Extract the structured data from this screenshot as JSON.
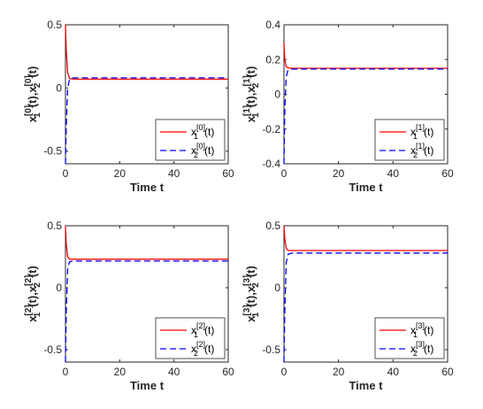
{
  "chart_data": [
    {
      "type": "line",
      "xlabel": "Time t",
      "ylabel": {
        "base": "x",
        "sup": "[0]",
        "parts": [
          "1",
          "(t),",
          "2",
          "(t)"
        ]
      },
      "xlim": [
        0,
        60
      ],
      "ylim": [
        -0.6,
        0.5
      ],
      "xticks": [
        "0",
        "20",
        "40",
        "60"
      ],
      "yticks": [
        {
          "value": 0.5,
          "label": "0.5"
        },
        {
          "value": 0,
          "label": "0"
        },
        {
          "value": -0.5,
          "label": "-0.5"
        }
      ],
      "legend_position": "bottom-right",
      "series": [
        {
          "name": {
            "base": "x",
            "sup": "[0]",
            "sub": "1",
            "tail": "(t)"
          },
          "color": "#ff0000",
          "style": "solid",
          "x": [
            0,
            0.3,
            0.8,
            1.5,
            3,
            60
          ],
          "y": [
            0.5,
            0.3,
            0.12,
            0.075,
            0.07,
            0.07
          ]
        },
        {
          "name": {
            "base": "x",
            "sup": "[0]",
            "sub": "2",
            "tail": "(t)"
          },
          "color": "#0000ff",
          "style": "dashed",
          "x": [
            0,
            0.3,
            0.8,
            1.5,
            3,
            60
          ],
          "y": [
            -0.6,
            -0.3,
            0.0,
            0.07,
            0.08,
            0.08
          ]
        }
      ]
    },
    {
      "type": "line",
      "xlabel": "Time t",
      "ylabel": {
        "base": "x",
        "sup": "[1]",
        "parts": [
          "1",
          "(t),",
          "2",
          "(t)"
        ]
      },
      "xlim": [
        0,
        60
      ],
      "ylim": [
        -0.4,
        0.4
      ],
      "xticks": [
        "0",
        "20",
        "40",
        "60"
      ],
      "yticks": [
        {
          "value": 0.4,
          "label": "0.4"
        },
        {
          "value": 0.2,
          "label": "0.2"
        },
        {
          "value": 0,
          "label": "0"
        },
        {
          "value": -0.2,
          "label": "-0.2"
        },
        {
          "value": -0.4,
          "label": "-0.4"
        }
      ],
      "legend_position": "bottom-right",
      "series": [
        {
          "name": {
            "base": "x",
            "sup": "[1]",
            "sub": "1",
            "tail": "(t)"
          },
          "color": "#ff0000",
          "style": "solid",
          "x": [
            0,
            0.3,
            0.8,
            1.5,
            3,
            60
          ],
          "y": [
            0.3,
            0.2,
            0.16,
            0.152,
            0.15,
            0.15
          ]
        },
        {
          "name": {
            "base": "x",
            "sup": "[1]",
            "sub": "2",
            "tail": "(t)"
          },
          "color": "#0000ff",
          "style": "dashed",
          "x": [
            0,
            0.3,
            0.8,
            1.5,
            3,
            60
          ],
          "y": [
            -0.4,
            -0.1,
            0.1,
            0.14,
            0.145,
            0.145
          ]
        }
      ]
    },
    {
      "type": "line",
      "xlabel": "Time t",
      "ylabel": {
        "base": "x",
        "sup": "[2]",
        "parts": [
          "1",
          "(t),",
          "2",
          "(t)"
        ]
      },
      "xlim": [
        0,
        60
      ],
      "ylim": [
        -0.6,
        0.5
      ],
      "xticks": [
        "0",
        "20",
        "40",
        "60"
      ],
      "yticks": [
        {
          "value": 0.5,
          "label": "0.5"
        },
        {
          "value": 0,
          "label": "0"
        },
        {
          "value": -0.5,
          "label": "-0.5"
        }
      ],
      "legend_position": "bottom-right",
      "series": [
        {
          "name": {
            "base": "x",
            "sup": "[2]",
            "sub": "1",
            "tail": "(t)"
          },
          "color": "#ff0000",
          "style": "solid",
          "x": [
            0,
            0.3,
            0.8,
            1.5,
            3,
            60
          ],
          "y": [
            0.5,
            0.35,
            0.25,
            0.23,
            0.23,
            0.23
          ]
        },
        {
          "name": {
            "base": "x",
            "sup": "[2]",
            "sub": "2",
            "tail": "(t)"
          },
          "color": "#0000ff",
          "style": "dashed",
          "x": [
            0,
            0.3,
            0.8,
            1.5,
            3,
            60
          ],
          "y": [
            -0.6,
            -0.2,
            0.15,
            0.21,
            0.215,
            0.215
          ]
        }
      ]
    },
    {
      "type": "line",
      "xlabel": "Time t",
      "ylabel": {
        "base": "x",
        "sup": "[3]",
        "parts": [
          "1",
          "(t),",
          "2",
          "(t)"
        ]
      },
      "xlim": [
        0,
        60
      ],
      "ylim": [
        -0.6,
        0.5
      ],
      "xticks": [
        "0",
        "20",
        "40",
        "60"
      ],
      "yticks": [
        {
          "value": 0.5,
          "label": "0.5"
        },
        {
          "value": 0,
          "label": "0"
        },
        {
          "value": -0.5,
          "label": "-0.5"
        }
      ],
      "legend_position": "bottom-right",
      "series": [
        {
          "name": {
            "base": "x",
            "sup": "[3]",
            "sub": "1",
            "tail": "(t)"
          },
          "color": "#ff0000",
          "style": "solid",
          "x": [
            0,
            0.3,
            0.8,
            1.5,
            3,
            60
          ],
          "y": [
            0.5,
            0.4,
            0.32,
            0.3,
            0.3,
            0.3
          ]
        },
        {
          "name": {
            "base": "x",
            "sup": "[3]",
            "sub": "2",
            "tail": "(t)"
          },
          "color": "#0000ff",
          "style": "dashed",
          "x": [
            0,
            0.3,
            0.8,
            1.5,
            3,
            60
          ],
          "y": [
            -0.6,
            -0.2,
            0.2,
            0.27,
            0.28,
            0.28
          ]
        }
      ]
    }
  ]
}
